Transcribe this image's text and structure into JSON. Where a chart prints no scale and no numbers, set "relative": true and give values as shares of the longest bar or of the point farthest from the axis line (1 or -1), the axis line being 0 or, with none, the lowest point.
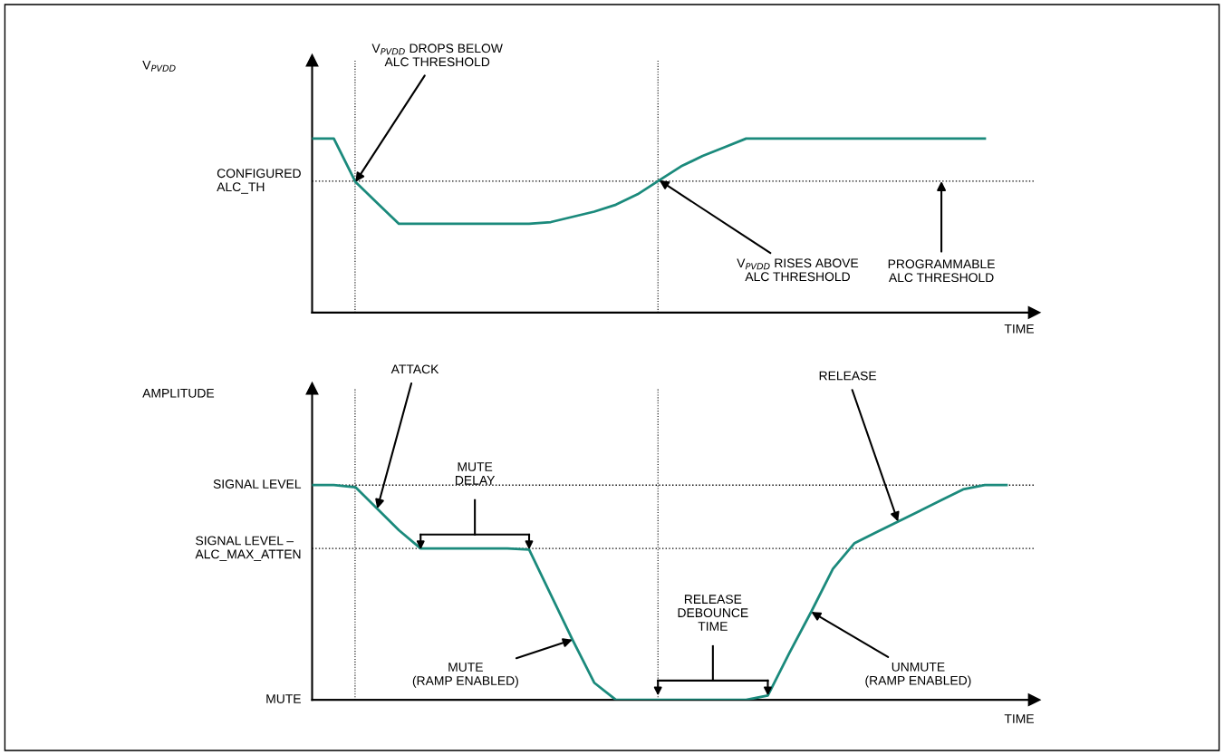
{
  "chart_data": [
    {
      "type": "line",
      "relative": true,
      "ylabel": "V$_{PVDD}$",
      "xlabel": "TIME",
      "marker": "none",
      "line_style": "solid",
      "categories": [
        null,
        null,
        null,
        null,
        null,
        null,
        null,
        null,
        null,
        null,
        null,
        null,
        null,
        null,
        null,
        null,
        null,
        null,
        null,
        null,
        null,
        null,
        null,
        null,
        null,
        null,
        null,
        null,
        null,
        null,
        null,
        null,
        null
      ],
      "series": [
        {
          "color": "#1b8a7c",
          "values": [
            1,
            1,
            0.75,
            0.63,
            0.51,
            0.51,
            0.51,
            0.51,
            0.51,
            0.51,
            0.51,
            0.52,
            0.55,
            0.58,
            0.62,
            0.68,
            0.76,
            0.84,
            0.9,
            0.95,
            1,
            1,
            1,
            1,
            1,
            1,
            1,
            1,
            1,
            1,
            1,
            1,
            null
          ]
        }
      ],
      "ref_lines": [
        {
          "axis": "y",
          "value": 0.755,
          "label": "CONFIGURED\nALC_TH",
          "line_style": "dotted"
        }
      ],
      "annotations": [
        "V$_{PVDD}$ DROPS BELOW\nALC THRESHOLD",
        "V$_{PVDD}$ RISES ABOVE\nALC THRESHOLD",
        "PROGRAMMABLE\nALC THRESHOLD"
      ]
    },
    {
      "type": "line",
      "relative": true,
      "ylabel": "AMPLITUDE",
      "xlabel": "TIME",
      "marker": "none",
      "line_style": "solid",
      "categories": [
        null,
        null,
        null,
        null,
        null,
        null,
        null,
        null,
        null,
        null,
        null,
        null,
        null,
        null,
        null,
        null,
        null,
        null,
        null,
        null,
        null,
        null,
        null,
        null,
        null,
        null,
        null,
        null,
        null,
        null,
        null,
        null,
        null
      ],
      "series": [
        {
          "color": "#1b8a7c",
          "values": [
            1,
            1,
            0.99,
            0.89,
            0.79,
            0.705,
            0.705,
            0.705,
            0.705,
            0.705,
            0.7,
            0.49,
            0.28,
            0.08,
            0,
            0,
            0,
            0,
            0,
            0,
            0,
            0.02,
            0.22,
            0.41,
            0.61,
            0.73,
            0.78,
            0.83,
            0.88,
            0.93,
            0.98,
            1,
            1
          ]
        }
      ],
      "ref_lines": [
        {
          "axis": "y",
          "value": 1,
          "label": "SIGNAL LEVEL",
          "line_style": "dotted"
        },
        {
          "axis": "y",
          "value": 0.705,
          "label": "SIGNAL LEVEL –\nALC_MAX_ATTEN",
          "line_style": "dotted"
        },
        {
          "axis": "y",
          "value": 0,
          "label": "MUTE",
          "line_style": "solid"
        }
      ],
      "annotations": [
        "ATTACK",
        "MUTE\nDELAY",
        "MUTE\n(RAMP ENABLED)",
        "RELEASE\nDEBOUNCE\nTIME",
        "RELEASE",
        "UNMUTE\n(RAMP ENABLED)"
      ]
    }
  ]
}
